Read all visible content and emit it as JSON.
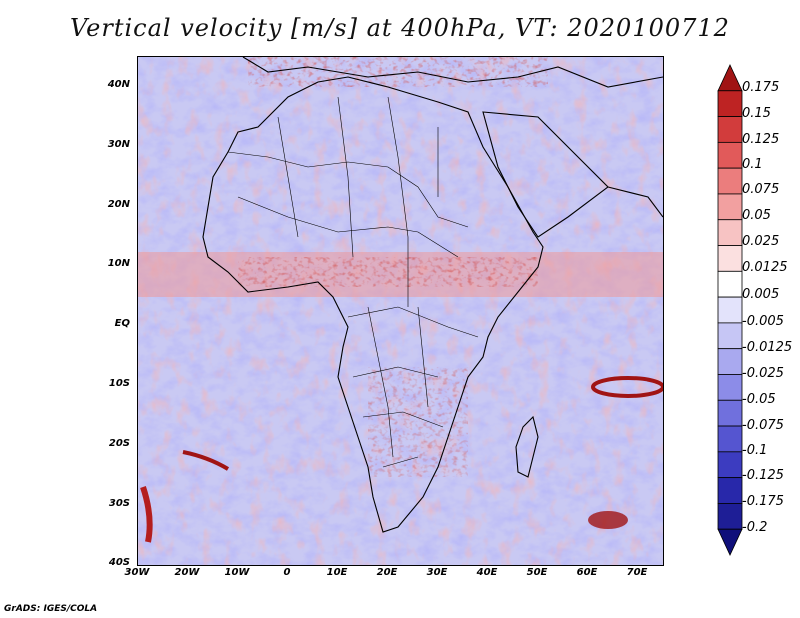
{
  "title": "Vertical velocity [m/s] at 400hPa, VT: 2020100712",
  "credit": "GrADS: IGES/COLA",
  "map": {
    "variable": "Vertical velocity",
    "units": "m/s",
    "level": "400hPa",
    "valid_time": "2020100712",
    "lat_ticks": [
      "40N",
      "30N",
      "20N",
      "10N",
      "EQ",
      "10S",
      "20S",
      "30S",
      "40S"
    ],
    "lon_ticks": [
      "30W",
      "20W",
      "10W",
      "0",
      "10E",
      "20E",
      "30E",
      "40E",
      "50E",
      "60E",
      "70E"
    ],
    "lat_range": [
      -40,
      45
    ],
    "lon_range": [
      -30,
      75
    ]
  },
  "colorbar": {
    "labels": [
      "0.175",
      "0.15",
      "0.125",
      "0.1",
      "0.075",
      "0.05",
      "0.025",
      "0.0125",
      "0.005",
      "-0.005",
      "-0.0125",
      "-0.025",
      "-0.05",
      "-0.075",
      "-0.1",
      "-0.125",
      "-0.175",
      "-0.2"
    ],
    "colors": [
      "#a01414",
      "#be2323",
      "#d23c3c",
      "#e15a5a",
      "#eb7d7d",
      "#f2a0a0",
      "#f7c3c3",
      "#fbe0e0",
      "#ffffff",
      "#e3e3fb",
      "#c6c6f5",
      "#a9a9ef",
      "#8c8ce8",
      "#7070dd",
      "#5555d0",
      "#3c3cc0",
      "#2828aa",
      "#1e1e96",
      "#0f0f7a"
    ]
  }
}
